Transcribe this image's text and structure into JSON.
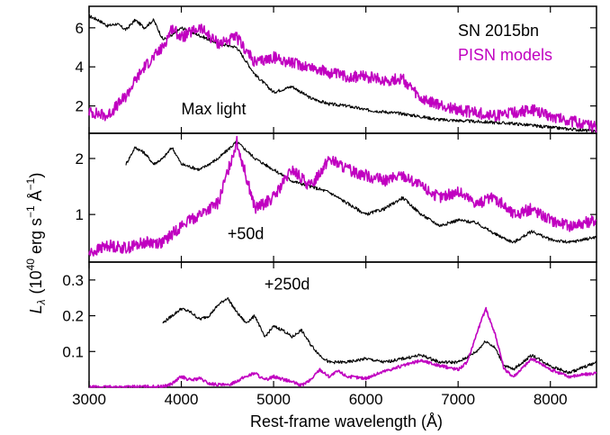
{
  "chart_data": {
    "type": "line",
    "xlabel": "Rest-frame wavelength (Å)",
    "ylabel": "L_λ (10^40 erg s^-1 Å^-1)",
    "ylabel_parts": {
      "symbol": "L",
      "subscript": "λ",
      "pre": "(10",
      "exp1": "40",
      "mid": " erg s",
      "exp2": "−1",
      "end": " Å",
      "exp3": "−1",
      "close": ")"
    },
    "xlim": [
      3000,
      8500
    ],
    "xticks": [
      3000,
      4000,
      5000,
      6000,
      7000,
      8000
    ],
    "xtick_labels": [
      "3000",
      "4000",
      "5000",
      "6000",
      "7000",
      "8000"
    ],
    "colors": {
      "observed": "#000000",
      "model": "#c000c0"
    },
    "legend": {
      "placement": "top-right",
      "entries": [
        {
          "label": "SN 2015bn",
          "color": "#000000"
        },
        {
          "label": "PISN models",
          "color": "#c000c0"
        }
      ]
    },
    "panels": [
      {
        "label": "Max light",
        "ylim": [
          0.6,
          7.1
        ],
        "yticks": [
          2,
          4,
          6
        ],
        "ytick_labels": [
          "2",
          "4",
          "6"
        ],
        "series": [
          {
            "name": "SN 2015bn",
            "x": [
              3000,
              3100,
              3200,
              3300,
              3400,
              3500,
              3600,
              3700,
              3800,
              3900,
              4000,
              4200,
              4400,
              4600,
              4800,
              5000,
              5200,
              5400,
              5600,
              5800,
              6000,
              6400,
              6800,
              7200,
              7600,
              8000,
              8500
            ],
            "y": [
              6.6,
              6.4,
              6.1,
              6.2,
              5.9,
              6.4,
              6.0,
              6.4,
              5.4,
              5.6,
              6.0,
              5.6,
              5.2,
              5.0,
              3.6,
              2.7,
              3.0,
              2.4,
              2.1,
              2.0,
              1.8,
              1.6,
              1.3,
              1.2,
              1.1,
              0.9,
              0.7
            ]
          },
          {
            "name": "PISN models",
            "x": [
              3000,
              3200,
              3400,
              3500,
              3600,
              3800,
              3900,
              4000,
              4200,
              4400,
              4600,
              4800,
              5000,
              5200,
              5400,
              5600,
              5800,
              6000,
              6200,
              6400,
              6600,
              7000,
              7400,
              7800,
              8000,
              8500
            ],
            "y": [
              1.7,
              1.5,
              2.5,
              3.3,
              4.0,
              5.0,
              6.0,
              5.5,
              6.0,
              5.2,
              5.5,
              4.2,
              4.5,
              4.2,
              4.0,
              3.7,
              3.5,
              3.5,
              3.3,
              3.4,
              2.3,
              1.8,
              1.5,
              1.8,
              1.5,
              0.9
            ]
          }
        ]
      },
      {
        "label": "+50d",
        "ylim": [
          0.15,
          2.45
        ],
        "yticks": [
          1,
          2
        ],
        "ytick_labels": [
          "1",
          "2"
        ],
        "series": [
          {
            "name": "SN 2015bn",
            "x": [
              3400,
              3500,
              3600,
              3700,
              3800,
              3900,
              4000,
              4200,
              4400,
              4600,
              4800,
              5000,
              5200,
              5400,
              5600,
              5800,
              6000,
              6200,
              6400,
              6600,
              6800,
              7000,
              7200,
              7400,
              7600,
              7800,
              8000,
              8200,
              8500
            ],
            "y": [
              1.9,
              2.2,
              2.1,
              1.9,
              2.0,
              2.2,
              1.9,
              1.8,
              2.0,
              2.3,
              2.0,
              1.8,
              1.6,
              1.5,
              1.4,
              1.2,
              1.0,
              1.1,
              1.3,
              1.0,
              0.8,
              0.9,
              0.85,
              0.65,
              0.5,
              0.7,
              0.55,
              0.5,
              0.6
            ]
          },
          {
            "name": "PISN models",
            "x": [
              3000,
              3200,
              3400,
              3600,
              3800,
              4000,
              4200,
              4400,
              4600,
              4800,
              5000,
              5200,
              5400,
              5600,
              5800,
              6000,
              6200,
              6400,
              6600,
              6800,
              7000,
              7200,
              7400,
              7600,
              7800,
              8000,
              8200,
              8500
            ],
            "y": [
              0.3,
              0.45,
              0.4,
              0.5,
              0.5,
              0.8,
              1.0,
              1.2,
              2.3,
              1.1,
              1.3,
              1.8,
              1.5,
              2.0,
              1.8,
              1.7,
              1.6,
              1.7,
              1.5,
              1.3,
              1.4,
              1.2,
              1.3,
              1.0,
              1.1,
              0.9,
              0.8,
              0.9
            ]
          }
        ]
      },
      {
        "label": "+250d",
        "ylim": [
          0.0,
          0.35
        ],
        "yticks": [
          0.1,
          0.2,
          0.3
        ],
        "ytick_labels": [
          "0.1",
          "0.2",
          "0.3"
        ],
        "series": [
          {
            "name": "SN 2015bn",
            "x": [
              3800,
              3900,
              4000,
              4100,
              4200,
              4300,
              4400,
              4500,
              4600,
              4700,
              4800,
              4900,
              5000,
              5100,
              5200,
              5300,
              5400,
              5500,
              5600,
              5800,
              6000,
              6200,
              6400,
              6600,
              6800,
              7000,
              7200,
              7300,
              7400,
              7500,
              7600,
              7800,
              8000,
              8200,
              8500
            ],
            "y": [
              0.18,
              0.2,
              0.22,
              0.21,
              0.19,
              0.2,
              0.23,
              0.25,
              0.21,
              0.18,
              0.2,
              0.14,
              0.17,
              0.16,
              0.14,
              0.16,
              0.12,
              0.09,
              0.07,
              0.07,
              0.08,
              0.07,
              0.08,
              0.09,
              0.07,
              0.07,
              0.1,
              0.13,
              0.11,
              0.06,
              0.05,
              0.09,
              0.06,
              0.04,
              0.07
            ]
          },
          {
            "name": "PISN models",
            "x": [
              3000,
              3800,
              3900,
              4000,
              4100,
              4200,
              4300,
              4500,
              4700,
              4800,
              4900,
              5000,
              5200,
              5300,
              5400,
              5500,
              5600,
              5700,
              5800,
              6000,
              6200,
              6400,
              6600,
              6800,
              7000,
              7100,
              7200,
              7300,
              7400,
              7500,
              7600,
              7800,
              8000,
              8200,
              8500
            ],
            "y": [
              0.0,
              0.002,
              0.01,
              0.03,
              0.02,
              0.025,
              0.01,
              0.005,
              0.03,
              0.04,
              0.02,
              0.03,
              0.015,
              0.005,
              0.02,
              0.05,
              0.03,
              0.045,
              0.03,
              0.025,
              0.045,
              0.06,
              0.075,
              0.06,
              0.05,
              0.07,
              0.15,
              0.22,
              0.15,
              0.05,
              0.03,
              0.08,
              0.05,
              0.03,
              0.04
            ]
          }
        ]
      }
    ]
  }
}
